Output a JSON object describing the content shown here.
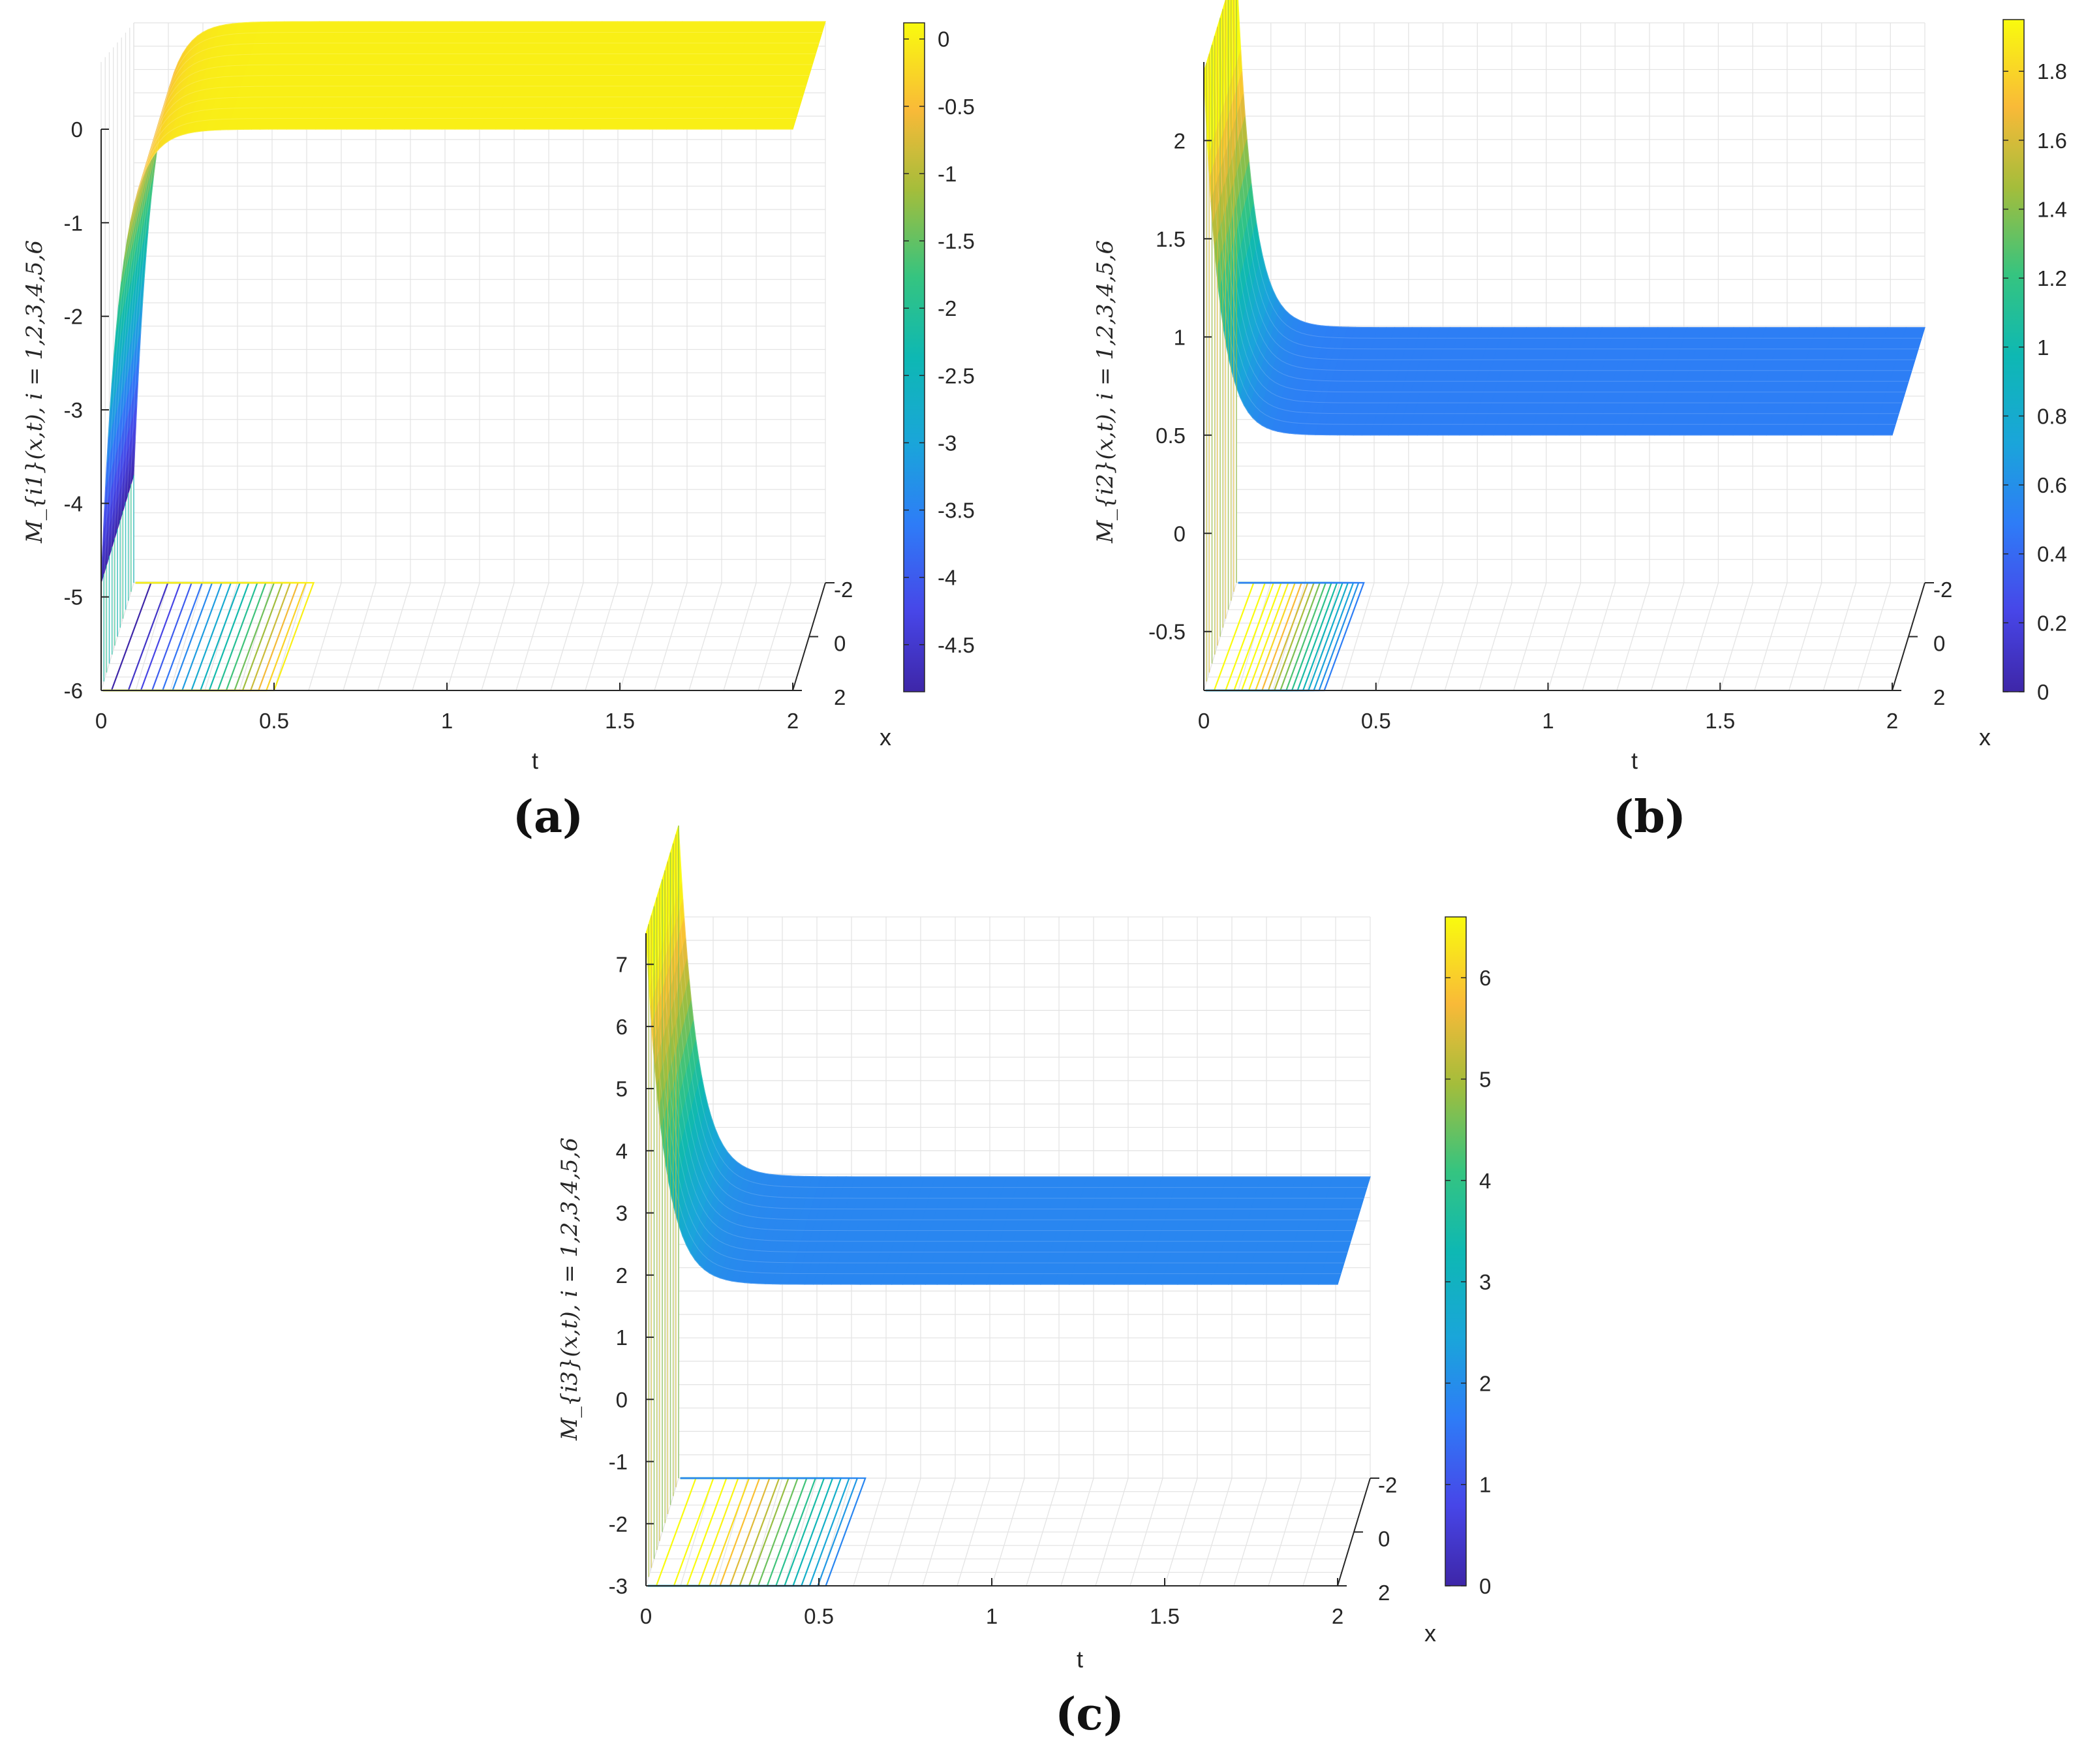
{
  "figure": {
    "panels": [
      {
        "id": "a",
        "caption": "(a)"
      },
      {
        "id": "b",
        "caption": "(b)"
      },
      {
        "id": "c",
        "caption": "(c)"
      }
    ]
  },
  "chart_data": [
    {
      "type": "surface3d",
      "panel": "(a)",
      "title": "",
      "xlabel": "t",
      "ylabel": "x",
      "zlabel": "M_{i1}(x,t), i = 1,2,3,4,5,6",
      "xticks": [
        "0",
        "0.5",
        "1",
        "1.5",
        "2"
      ],
      "yticks": [
        "-2",
        "0",
        "2"
      ],
      "zticks": [
        "0",
        "-1",
        "-2",
        "-3",
        "-4",
        "-5",
        "-6"
      ],
      "xlim": [
        0,
        2
      ],
      "ylim": [
        -2,
        2
      ],
      "zlim": [
        -6,
        0
      ],
      "colorbar": {
        "range": [
          -4.85,
          0.12
        ],
        "ticks": [
          "0",
          "-0.5",
          "-1",
          "-1.5",
          "-2",
          "-2.5",
          "-3",
          "-3.5",
          "-4",
          "-4.5"
        ],
        "colormap": "parula"
      },
      "surface": {
        "start_value": -4.85,
        "steady_value": 0.0,
        "settle_t": 0.4,
        "shape": "rises from about -4.85 at t=0 to a flat plateau near 0"
      },
      "contours": {
        "extent_t": [
          0,
          0.5
        ],
        "levels": 18
      }
    },
    {
      "type": "surface3d",
      "panel": "(b)",
      "title": "",
      "xlabel": "t",
      "ylabel": "x",
      "zlabel": "M_{i2}(x,t), i = 1,2,3,4,5,6",
      "xticks": [
        "0",
        "0.5",
        "1",
        "1.5",
        "2"
      ],
      "yticks": [
        "-2",
        "0",
        "2"
      ],
      "zticks": [
        "2",
        "1.5",
        "1",
        "0.5",
        "0",
        "-0.5"
      ],
      "xlim": [
        0,
        2
      ],
      "ylim": [
        -2,
        2
      ],
      "zlim": [
        -0.8,
        2.4
      ],
      "colorbar": {
        "range": [
          0,
          1.95
        ],
        "ticks": [
          "1.8",
          "1.6",
          "1.4",
          "1.2",
          "1",
          "0.8",
          "0.6",
          "0.4",
          "0.2",
          "0"
        ],
        "colormap": "parula"
      },
      "surface": {
        "start_value": 2.35,
        "steady_value": 0.5,
        "settle_t": 0.35,
        "shape": "decays from about 2.35 at t=0 to a flat plateau near 0.5"
      },
      "contours": {
        "extent_t": [
          0,
          0.35
        ],
        "levels": 18
      }
    },
    {
      "type": "surface3d",
      "panel": "(c)",
      "title": "",
      "xlabel": "t",
      "ylabel": "x",
      "zlabel": "M_{i3}(x,t), i = 1,2,3,4,5,6",
      "xticks": [
        "0",
        "0.5",
        "1",
        "1.5",
        "2"
      ],
      "yticks": [
        "-2",
        "0",
        "2"
      ],
      "zticks": [
        "7",
        "6",
        "5",
        "4",
        "3",
        "2",
        "1",
        "0",
        "-1",
        "-2",
        "-3"
      ],
      "xlim": [
        0,
        2
      ],
      "ylim": [
        -2,
        2
      ],
      "zlim": [
        -3,
        7.5
      ],
      "colorbar": {
        "range": [
          0,
          6.6
        ],
        "ticks": [
          "6",
          "5",
          "4",
          "3",
          "2",
          "1",
          "0"
        ],
        "colormap": "parula"
      },
      "surface": {
        "start_value": 7.5,
        "steady_value": 1.85,
        "settle_t": 0.4,
        "shape": "decays from about 7.5 at t=0 to a flat plateau near 1.85"
      },
      "contours": {
        "extent_t": [
          0,
          0.52
        ],
        "levels": 18
      }
    }
  ]
}
